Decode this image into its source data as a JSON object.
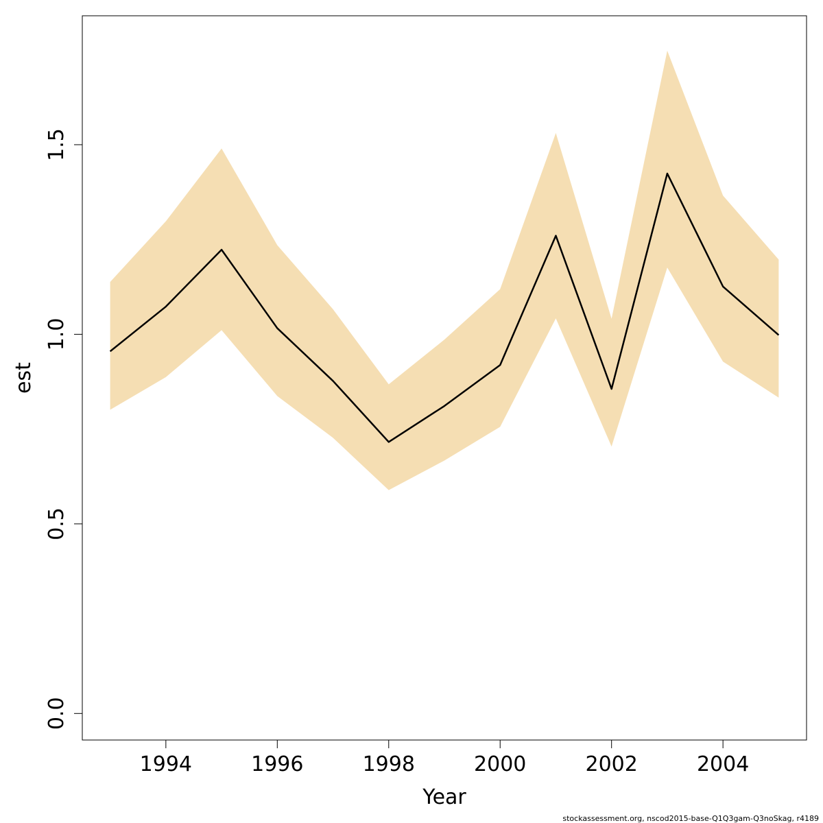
{
  "chart_data": {
    "type": "line",
    "xlabel": "Year",
    "ylabel": "est",
    "xlim": [
      1992.5,
      2005.5
    ],
    "ylim": [
      -0.07,
      1.84
    ],
    "x_ticks": [
      1994,
      1996,
      1998,
      2000,
      2002,
      2004
    ],
    "x_tick_labels": [
      "1994",
      "1996",
      "1998",
      "2000",
      "2002",
      "2004"
    ],
    "y_ticks": [
      0.0,
      0.5,
      1.0,
      1.5
    ],
    "y_tick_labels": [
      "0.0",
      "0.5",
      "1.0",
      "1.5"
    ],
    "grid": false,
    "x": [
      1993,
      1994,
      1995,
      1996,
      1997,
      1998,
      1999,
      2000,
      2001,
      2002,
      2003,
      2004,
      2005
    ],
    "series": [
      {
        "values": [
          0.955,
          1.073,
          1.223,
          1.016,
          0.877,
          0.716,
          0.811,
          0.919,
          1.26,
          0.856,
          1.424,
          1.126,
          0.998
        ],
        "lower": [
          0.801,
          0.887,
          1.011,
          0.837,
          0.727,
          0.589,
          0.667,
          0.756,
          1.042,
          0.704,
          1.176,
          0.928,
          0.833
        ],
        "upper": [
          1.138,
          1.298,
          1.49,
          1.235,
          1.066,
          0.868,
          0.986,
          1.119,
          1.531,
          1.041,
          1.748,
          1.366,
          1.197
        ],
        "line_color": "#000000",
        "band_color": "#F5DEB3"
      }
    ]
  },
  "footer_text": "stockassessment.org, nscod2015-base-Q1Q3gam-Q3noSkag, r4189"
}
